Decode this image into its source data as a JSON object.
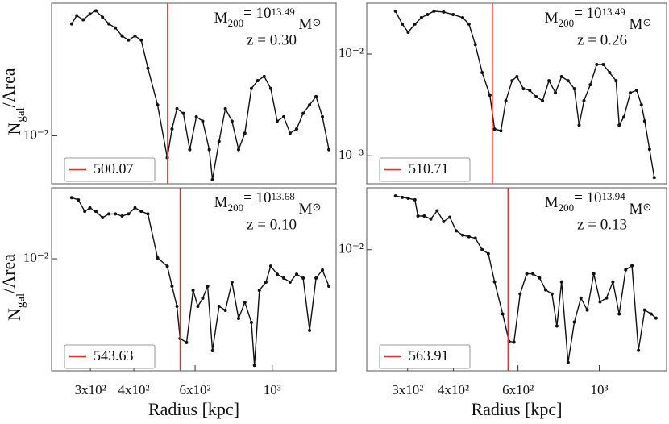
{
  "chart_data": [
    {
      "type": "line",
      "log_x": true,
      "log_y": true,
      "annotation": {
        "mass": [
          "M",
          "200",
          "= 10",
          "13.49",
          " M",
          "⊙"
        ],
        "redshift": "z = 0.30"
      },
      "ylabel": [
        "N",
        "gal",
        "/Area"
      ],
      "xlim": [
        232,
        1526
      ],
      "ylim": [
        0.0058,
        0.045
      ],
      "yticks": [
        {
          "value": 0.01,
          "label": "10⁻²"
        }
      ],
      "vline": {
        "name": "500.07",
        "value": 500.07,
        "color": "#e03030"
      },
      "x": [
        265,
        274,
        286,
        299,
        311,
        325,
        339,
        354,
        370,
        386,
        403,
        420,
        439,
        468,
        499,
        515,
        532,
        555,
        579,
        605,
        631,
        659,
        673,
        703,
        733,
        766,
        800,
        834,
        871,
        908,
        948,
        990,
        1033,
        1079,
        1125,
        1175,
        1227,
        1280,
        1336,
        1394,
        1455
      ],
      "series": [
        {
          "color": "#111111",
          "values": [
            0.0356,
            0.0391,
            0.0373,
            0.0398,
            0.0413,
            0.0384,
            0.0356,
            0.034,
            0.031,
            0.0296,
            0.031,
            0.0296,
            0.0215,
            0.0142,
            0.0078,
            0.0108,
            0.0136,
            0.0129,
            0.00855,
            0.0124,
            0.0118,
            0.00855,
            0.00608,
            0.00938,
            0.0136,
            0.0118,
            0.00855,
            0.0103,
            0.0171,
            0.0187,
            0.0196,
            0.0171,
            0.0118,
            0.0124,
            0.0103,
            0.0108,
            0.0129,
            0.0142,
            0.0156,
            0.0124,
            0.00855
          ]
        }
      ]
    },
    {
      "type": "line",
      "log_x": true,
      "log_y": true,
      "annotation": {
        "mass": [
          "M",
          "200",
          "= 10",
          "13.49",
          " M",
          "⊙"
        ],
        "redshift": "z = 0.26"
      },
      "xlim": [
        232,
        1526
      ],
      "ylim": [
        0.00053,
        0.0316
      ],
      "yticks": [
        {
          "value": 0.01,
          "label": "10⁻²"
        },
        {
          "value": 0.001,
          "label": "10⁻³"
        }
      ],
      "vline": {
        "name": "510.71",
        "value": 510.71,
        "color": "#e03030"
      },
      "x": [
        278,
        290,
        301,
        314,
        327,
        340,
        354,
        376,
        399,
        424,
        441,
        459,
        479,
        503,
        518,
        539,
        556,
        578,
        596,
        621,
        646,
        673,
        700,
        729,
        759,
        789,
        822,
        855,
        881,
        908,
        945,
        984,
        1025,
        1067,
        1111,
        1133,
        1167,
        1215,
        1265,
        1303,
        1330,
        1371,
        1413
      ],
      "series": [
        {
          "color": "#111111",
          "values": [
            0.0264,
            0.0197,
            0.0164,
            0.0197,
            0.0228,
            0.0245,
            0.0264,
            0.0259,
            0.0245,
            0.0228,
            0.0197,
            0.0124,
            0.00657,
            0.00394,
            0.00183,
            0.00176,
            0.00347,
            0.00547,
            0.006,
            0.00456,
            0.0044,
            0.0038,
            0.00347,
            0.00547,
            0.00416,
            0.006,
            0.00547,
            0.00456,
            0.002,
            0.00347,
            0.00499,
            0.00789,
            0.00789,
            0.00657,
            0.00547,
            0.002,
            0.0024,
            0.00416,
            0.0044,
            0.00316,
            0.00219,
            0.00116,
            0.000611
          ]
        }
      ]
    },
    {
      "type": "line",
      "log_x": true,
      "log_y": true,
      "annotation": {
        "mass": [
          "M",
          "200",
          "= 10",
          "13.68",
          " M",
          "⊙"
        ],
        "redshift": "z = 0.10"
      },
      "ylabel": [
        "N",
        "gal",
        "/Area"
      ],
      "xlabel": "Radius [kpc]",
      "xlim": [
        232,
        1526
      ],
      "ylim": [
        0.00278,
        0.0225
      ],
      "xticks": [
        {
          "value": 300,
          "label": "3x10²"
        },
        {
          "value": 400,
          "label": "4x10²"
        },
        {
          "value": 600,
          "label": "6x10²"
        },
        {
          "value": 1000,
          "label": "10³"
        }
      ],
      "yticks": [
        {
          "value": 0.01,
          "label": "10⁻²"
        }
      ],
      "vline": {
        "name": "543.63",
        "value": 543.63,
        "color": "#e03030"
      },
      "x": [
        265,
        277,
        289,
        299,
        311,
        325,
        339,
        354,
        370,
        386,
        403,
        420,
        439,
        468,
        499,
        515,
        532,
        543,
        567,
        592,
        611,
        631,
        652,
        673,
        703,
        733,
        766,
        800,
        834,
        871,
        889,
        918,
        959,
        990,
        1033,
        1079,
        1125,
        1175,
        1227,
        1280,
        1336,
        1394,
        1455
      ],
      "series": [
        {
          "color": "#111111",
          "values": [
            0.0201,
            0.0196,
            0.0172,
            0.0179,
            0.0172,
            0.016,
            0.0167,
            0.0167,
            0.0163,
            0.0167,
            0.0179,
            0.0172,
            0.0167,
            0.0101,
            0.0092,
            0.00731,
            0.00581,
            0.00402,
            0.00384,
            0.00698,
            0.00581,
            0.00637,
            0.00731,
            0.0035,
            0.00581,
            0.00555,
            0.00766,
            0.00506,
            0.00608,
            0.00483,
            0.00296,
            0.00698,
            0.00766,
            0.0092,
            0.00839,
            0.00802,
            0.00766,
            0.00839,
            0.00802,
            0.00441,
            0.00802,
            0.00879,
            0.00731
          ]
        }
      ]
    },
    {
      "type": "line",
      "log_x": true,
      "log_y": true,
      "annotation": {
        "mass": [
          "M",
          "200",
          "= 10",
          "13.94",
          " M",
          "⊙"
        ],
        "redshift": "z = 0.13"
      },
      "xlabel": "Radius [kpc]",
      "xlim": [
        232,
        1526
      ],
      "ylim": [
        0.0025,
        0.0203
      ],
      "xticks": [
        {
          "value": 300,
          "label": "3x10²"
        },
        {
          "value": 400,
          "label": "4x10²"
        },
        {
          "value": 600,
          "label": "6x10²"
        },
        {
          "value": 1000,
          "label": "10³"
        }
      ],
      "yticks": [
        {
          "value": 0.01,
          "label": "10⁻²"
        }
      ],
      "vline": {
        "name": "563.91",
        "value": 563.91,
        "color": "#e03030"
      },
      "x": [
        278,
        290,
        301,
        314,
        320,
        333,
        347,
        361,
        376,
        391,
        407,
        424,
        441,
        459,
        479,
        498,
        518,
        545,
        567,
        585,
        608,
        634,
        659,
        687,
        714,
        743,
        766,
        789,
        822,
        855,
        891,
        927,
        966,
        1005,
        1046,
        1089,
        1133,
        1180,
        1228,
        1279,
        1330,
        1385,
        1428
      ],
      "series": [
        {
          "color": "#111111",
          "values": [
            0.0185,
            0.0182,
            0.018,
            0.0177,
            0.0147,
            0.0147,
            0.0142,
            0.0156,
            0.0138,
            0.0145,
            0.0124,
            0.0118,
            0.0116,
            0.0114,
            0.01,
            0.00955,
            0.00692,
            0.00479,
            0.0035,
            0.00347,
            0.00603,
            0.00759,
            0.00759,
            0.00724,
            0.00631,
            0.00603,
            0.00417,
            0.00692,
            0.00275,
            0.00437,
            0.00575,
            0.00501,
            0.00759,
            0.0055,
            0.00575,
            0.00692,
            0.00479,
            0.00794,
            0.00832,
            0.00316,
            0.00501,
            0.00479,
            0.00457
          ]
        }
      ]
    }
  ]
}
